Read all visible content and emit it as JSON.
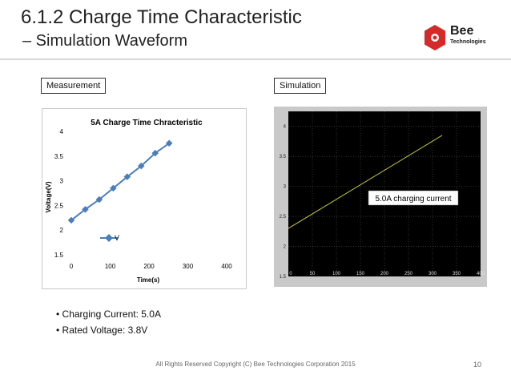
{
  "slide": {
    "title": "6.1.2 Charge Time Characteristic",
    "subtitle": "– Simulation Waveform",
    "logo_word": "Bee",
    "logo_sub": "Technologies",
    "measurement_label": "Measurement",
    "simulation_label": "Simulation",
    "bullets": [
      "Charging Current: 5.0A",
      "Rated Voltage: 3.8V"
    ],
    "footer": "All Rights Reserved Copyright (C) Bee Technologies Corporation 2015",
    "page_number": "10"
  },
  "chart_data": [
    {
      "type": "line",
      "title": "5A Charge Time Chracteristic",
      "xlabel": "Time(s)",
      "ylabel": "Voltage(V)",
      "xlim": [
        0,
        400
      ],
      "ylim": [
        1.5,
        4
      ],
      "xticks": [
        "0",
        "100",
        "200",
        "300",
        "400"
      ],
      "yticks": [
        "1.5",
        "2",
        "2.5",
        "3",
        "3.5",
        "4"
      ],
      "grid": false,
      "legend_position": "inside-left",
      "series": [
        {
          "name": "V",
          "color": "#4a7ebb",
          "x": [
            0,
            36,
            72,
            108,
            144,
            180,
            216,
            252
          ],
          "y": [
            2.2,
            2.42,
            2.62,
            2.85,
            3.08,
            3.3,
            3.56,
            3.76
          ]
        }
      ]
    },
    {
      "type": "line",
      "xlim": [
        0,
        400
      ],
      "ylim": [
        1.5,
        4.25
      ],
      "xticks": [
        "0",
        "50",
        "100",
        "150",
        "200",
        "250",
        "300",
        "350",
        "400"
      ],
      "yticks": [
        "1.5",
        "2",
        "2.5",
        "3",
        "3.5",
        "4"
      ],
      "grid": true,
      "background": "#000000",
      "annotation": "5.0A charging current",
      "series": [
        {
          "color": "#c8c832",
          "x": [
            0,
            320
          ],
          "y": [
            2.3,
            3.85
          ]
        }
      ]
    }
  ]
}
